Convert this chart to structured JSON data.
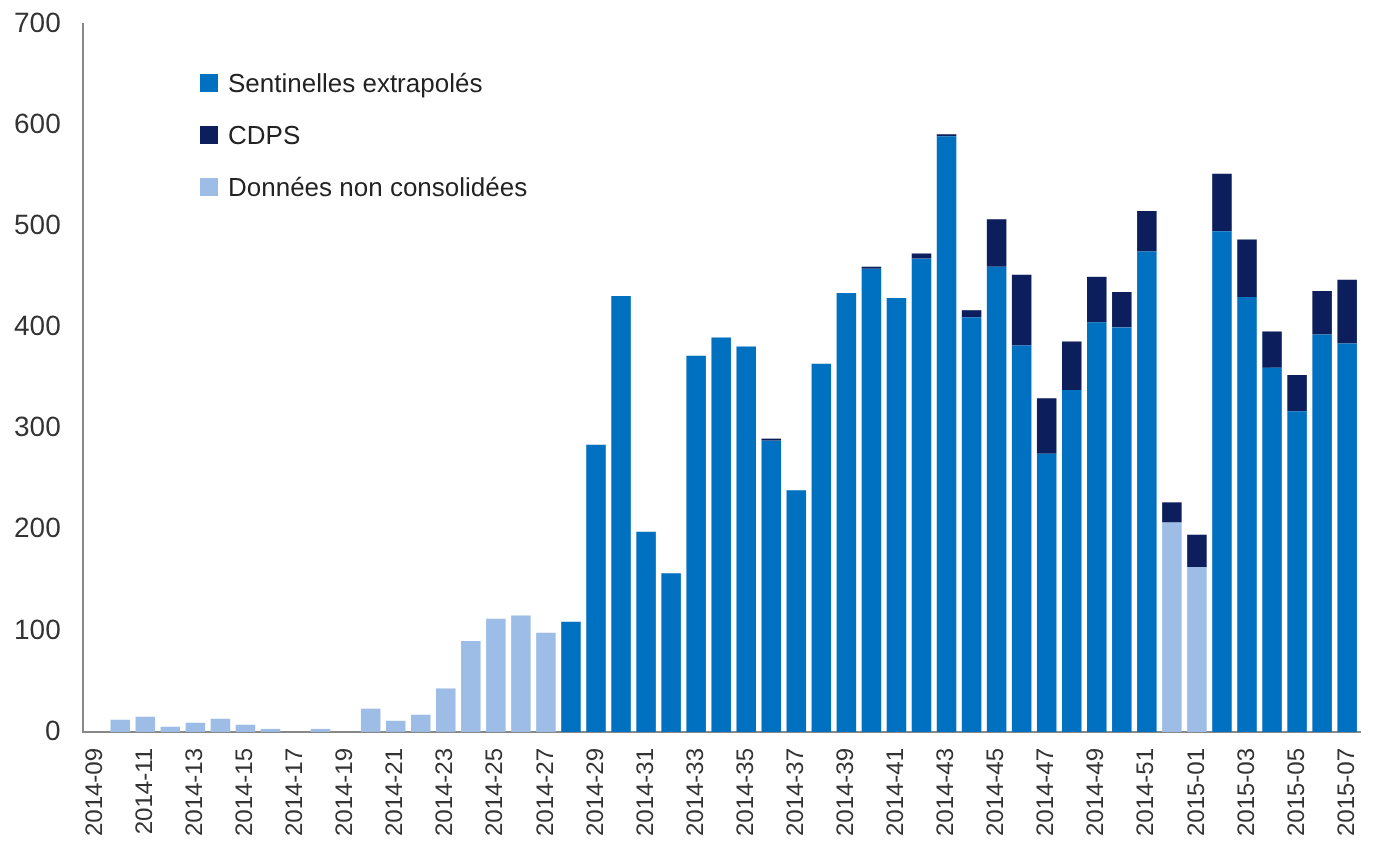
{
  "chart_data": {
    "type": "bar",
    "stacked": true,
    "legend": "top left",
    "grid": false,
    "categories": [
      "2014-09",
      null,
      "2014-11",
      null,
      "2014-13",
      null,
      "2014-15",
      null,
      "2014-17",
      null,
      "2014-19",
      null,
      "2014-21",
      null,
      "2014-23",
      null,
      "2014-25",
      null,
      "2014-27",
      null,
      "2014-29",
      null,
      "2014-31",
      null,
      "2014-33",
      null,
      "2014-35",
      null,
      "2014-37",
      null,
      "2014-39",
      null,
      "2014-41",
      null,
      "2014-43",
      null,
      "2014-45",
      null,
      "2014-47",
      null,
      "2014-49",
      null,
      "2014-51",
      null,
      "2015-01",
      null,
      "2015-03",
      null,
      "2015-05",
      null,
      "2015-07"
    ],
    "ylim": [
      0,
      700
    ],
    "yticks": [
      0,
      100,
      200,
      300,
      400,
      500,
      600,
      700
    ],
    "series": [
      {
        "name": "Sentinelles extrapolés",
        "color": "#0070c0",
        "values": [
          null,
          null,
          null,
          null,
          null,
          null,
          null,
          null,
          null,
          null,
          null,
          null,
          null,
          null,
          null,
          null,
          null,
          null,
          null,
          109,
          284,
          431,
          198,
          157,
          372,
          390,
          381,
          288,
          239,
          364,
          434,
          458,
          429,
          468,
          589,
          410,
          460,
          382,
          275,
          338,
          405,
          400,
          475,
          null,
          null,
          495,
          430,
          360,
          317,
          393,
          384
        ]
      },
      {
        "name": "Données non consolidées",
        "color": "#9dbde6",
        "values": [
          0,
          12,
          15,
          5,
          9,
          13,
          7,
          3,
          0,
          3,
          0,
          23,
          11,
          17,
          43,
          90,
          112,
          115,
          98,
          null,
          null,
          null,
          null,
          null,
          null,
          null,
          null,
          null,
          null,
          null,
          null,
          null,
          null,
          null,
          null,
          null,
          null,
          null,
          null,
          null,
          null,
          null,
          null,
          207,
          163,
          null,
          null,
          null,
          null,
          null,
          null
        ]
      },
      {
        "name": "CDPS",
        "color": "#0c1f5c",
        "values": [
          null,
          null,
          null,
          null,
          null,
          null,
          null,
          null,
          null,
          null,
          null,
          null,
          null,
          null,
          null,
          null,
          null,
          null,
          null,
          null,
          null,
          null,
          null,
          null,
          null,
          null,
          null,
          2,
          null,
          null,
          null,
          2,
          null,
          5,
          2,
          7,
          47,
          70,
          55,
          48,
          45,
          35,
          40,
          20,
          32,
          57,
          57,
          36,
          36,
          43,
          63
        ]
      }
    ]
  }
}
